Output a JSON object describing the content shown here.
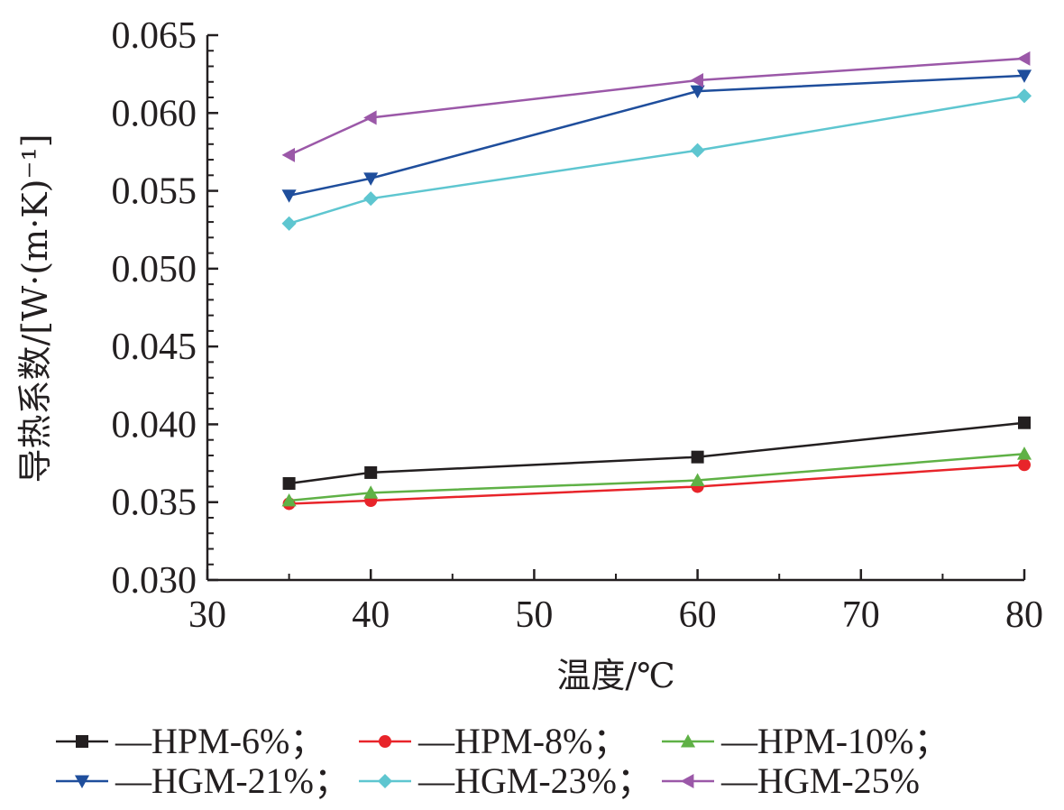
{
  "chart_data": {
    "type": "line",
    "xlabel": "温度/℃",
    "ylabel": "导热系数/[W·(m·K)⁻¹]",
    "xlim": [
      30,
      80
    ],
    "ylim": [
      0.03,
      0.065
    ],
    "xticks": [
      "30",
      "40",
      "50",
      "60",
      "70",
      "80"
    ],
    "yticks": [
      "0.030",
      "0.035",
      "0.040",
      "0.045",
      "0.050",
      "0.055",
      "0.060",
      "0.065"
    ],
    "grid": false,
    "legend_position": "bottom",
    "x": [
      35,
      40,
      60,
      80
    ],
    "series": [
      {
        "name": "HPM-6%",
        "legend_label": "—HPM-6%；",
        "color": "#231f20",
        "marker": "square",
        "values": [
          0.0362,
          0.0369,
          0.0379,
          0.0401
        ]
      },
      {
        "name": "HPM-8%",
        "legend_label": "—HPM-8%；",
        "color": "#e8242a",
        "marker": "circle",
        "values": [
          0.0349,
          0.0351,
          0.036,
          0.0374
        ]
      },
      {
        "name": "HPM-10%",
        "legend_label": "—HPM-10%；",
        "color": "#5fb146",
        "marker": "triangle-up",
        "values": [
          0.0351,
          0.0356,
          0.0364,
          0.0381
        ]
      },
      {
        "name": "HGM-21%",
        "legend_label": "—HGM-21%；",
        "color": "#1f4e9c",
        "marker": "triangle-down",
        "values": [
          0.0547,
          0.0558,
          0.0614,
          0.0624
        ]
      },
      {
        "name": "HGM-23%",
        "legend_label": "—HGM-23%；",
        "color": "#5ec6d0",
        "marker": "diamond",
        "values": [
          0.0529,
          0.0545,
          0.0576,
          0.0611
        ]
      },
      {
        "name": "HGM-25%",
        "legend_label": "—HGM-25%",
        "color": "#9b58a8",
        "marker": "triangle-left",
        "values": [
          0.0573,
          0.0597,
          0.0621,
          0.0635
        ]
      }
    ]
  }
}
